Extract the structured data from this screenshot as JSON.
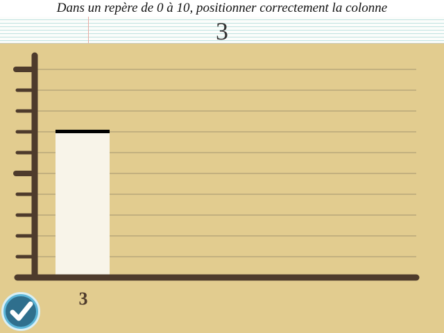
{
  "instruction": "Dans un repère de 0 à 10, positionner correctement la colonne",
  "target_value": "3",
  "chart_data": {
    "type": "bar",
    "categories": [
      "3"
    ],
    "values": [
      7
    ],
    "ylim": [
      0,
      10
    ],
    "grid": true
  },
  "colors": {
    "background": "#e2cc8f",
    "axis": "#4e3b2c",
    "grid": "#b8a77a",
    "bar_fill": "#f8f4e9",
    "bar_top": "#000000",
    "check_button": "#2f6f8d"
  },
  "icons": {
    "validate": "check-icon"
  }
}
